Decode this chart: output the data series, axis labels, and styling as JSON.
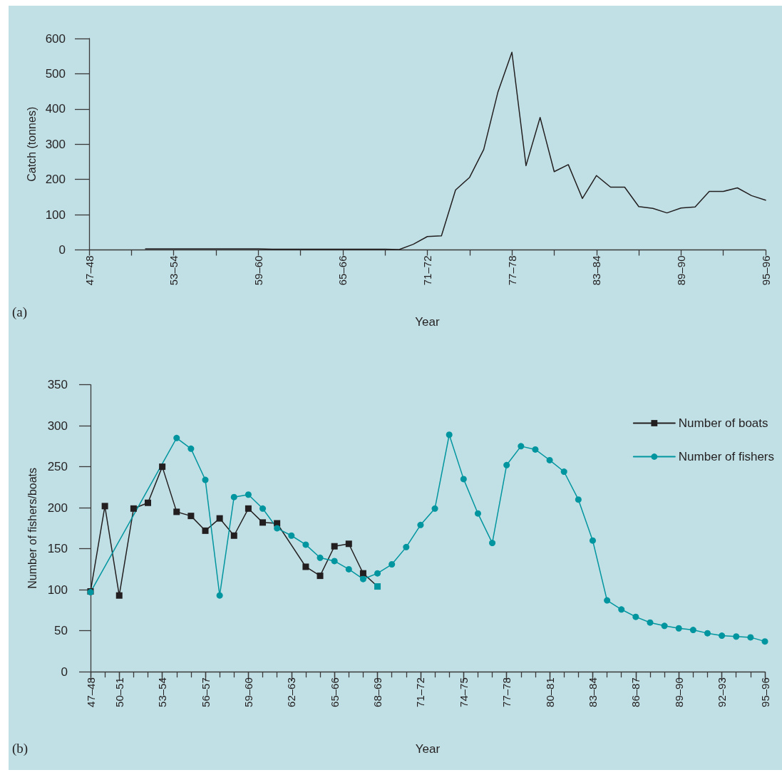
{
  "chart_data": [
    {
      "type": "line",
      "xlabel": "Year",
      "ylabel": "Catch (tonnes)",
      "annotations": [
        "(a)"
      ],
      "categories": [
        "47–48",
        null,
        null,
        null,
        null,
        null,
        "53–54",
        null,
        null,
        null,
        null,
        null,
        "59–60",
        null,
        null,
        null,
        null,
        null,
        "65–66",
        null,
        null,
        null,
        null,
        null,
        "71–72",
        null,
        null,
        null,
        null,
        null,
        "77–78",
        null,
        null,
        null,
        null,
        null,
        "83–84",
        null,
        null,
        null,
        null,
        null,
        "89–90",
        null,
        null,
        null,
        null,
        null,
        "95–96"
      ],
      "values": [
        null,
        null,
        null,
        null,
        3,
        3,
        3,
        3,
        3,
        3,
        3,
        3,
        3,
        2,
        2,
        2,
        2,
        2,
        2,
        2,
        2,
        2,
        1,
        16,
        38,
        40,
        170,
        206,
        285,
        447,
        561,
        239,
        376,
        222,
        242,
        146,
        211,
        178,
        178,
        123,
        118,
        105,
        119,
        122,
        166,
        166,
        176,
        154,
        141
      ],
      "color": "#231f20",
      "ylim": [
        0,
        600
      ],
      "yticks": [
        0,
        100,
        200,
        300,
        400,
        500,
        600
      ]
    },
    {
      "type": "line",
      "xlabel": "Year",
      "ylabel": "Number of fishers/boats",
      "annotations": [
        "(b)"
      ],
      "categories": [
        "47–48",
        null,
        "50–51",
        null,
        null,
        "53–54",
        null,
        null,
        "56–57",
        null,
        null,
        "59–60",
        null,
        null,
        "62–63",
        null,
        null,
        "65–66",
        null,
        null,
        "68–69",
        null,
        null,
        "71–72",
        null,
        null,
        "74–75",
        null,
        null,
        "77–78",
        null,
        null,
        "80–81",
        null,
        null,
        "83–84",
        null,
        null,
        "86–87",
        null,
        null,
        "89–90",
        null,
        null,
        "92–93",
        null,
        null,
        "95–96"
      ],
      "series": [
        {
          "name": "Number of boats",
          "color": "#231f20",
          "marker": "square",
          "values": [
            98,
            202,
            93,
            199,
            206,
            250,
            195,
            190,
            172,
            187,
            166,
            199,
            182,
            181,
            null,
            128,
            117,
            153,
            156,
            120,
            104,
            null,
            null,
            null,
            null,
            null,
            null,
            null,
            null,
            null,
            null,
            null,
            null,
            null,
            null,
            null,
            null,
            null,
            null,
            null,
            null,
            null,
            null,
            null,
            null,
            null,
            null,
            null
          ],
          "colors": [
            "#231f20",
            "#231f20",
            "#231f20",
            "#231f20",
            "#231f20",
            "#231f20",
            "#231f20",
            "#231f20",
            "#231f20",
            "#231f20",
            "#231f20",
            "#231f20",
            "#231f20",
            "#231f20",
            null,
            "#231f20",
            "#231f20",
            "#231f20",
            "#231f20",
            "#231f20",
            "#00959f",
            null,
            null,
            null,
            null,
            null,
            null,
            null,
            null,
            null,
            null,
            null,
            null,
            null,
            null,
            null,
            null,
            null,
            null,
            null,
            null,
            null,
            null,
            null,
            null,
            null,
            null,
            null
          ]
        },
        {
          "name": "Number of fishers",
          "color": "#00959f",
          "marker": "circle",
          "values": [
            97,
            null,
            null,
            null,
            null,
            null,
            285,
            272,
            234,
            93,
            213,
            216,
            199,
            175,
            166,
            155,
            139,
            135,
            125,
            113,
            120,
            131,
            152,
            179,
            199,
            289,
            235,
            193,
            157,
            252,
            275,
            271,
            258,
            244,
            210,
            160,
            87,
            76,
            67,
            60,
            56,
            53,
            51,
            47,
            44,
            43,
            42,
            37
          ]
        }
      ],
      "ylim": [
        0,
        350
      ],
      "yticks": [
        0,
        50,
        100,
        150,
        200,
        250,
        300,
        350
      ],
      "legend": "top right"
    }
  ]
}
